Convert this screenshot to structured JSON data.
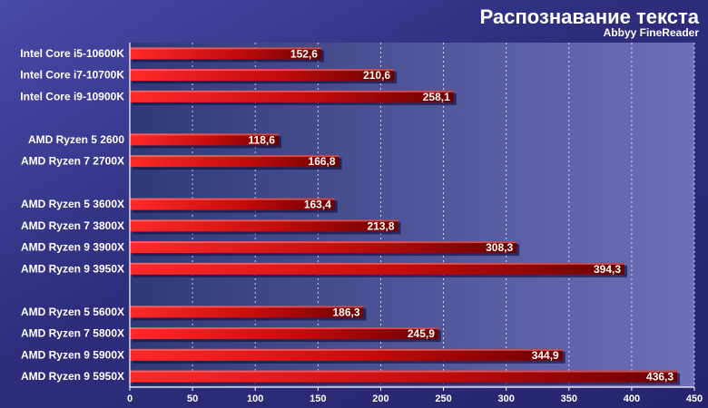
{
  "chart_data": {
    "type": "bar",
    "orientation": "horizontal",
    "title": "Распознавание текста",
    "subtitle": "Abbyy FineReader",
    "categories": [
      "Intel Core i5-10600K",
      "Intel Core i7-10700K",
      "Intel Core i9-10900K",
      "AMD Ryzen 5 2600",
      "AMD Ryzen 7 2700X",
      "AMD Ryzen 5 3600X",
      "AMD Ryzen 7 3800X",
      "AMD Ryzen 9 3900X",
      "AMD Ryzen 9 3950X",
      "AMD Ryzen 5 5600X",
      "AMD Ryzen 7 5800X",
      "AMD Ryzen 9 5900X",
      "AMD Ryzen 9 5950X"
    ],
    "groups": [
      3,
      2,
      4,
      4
    ],
    "values": [
      152.6,
      210.6,
      258.1,
      118.6,
      166.8,
      163.4,
      213.8,
      308.3,
      394.3,
      186.3,
      245.9,
      344.9,
      436.3
    ],
    "value_labels": [
      "152,6",
      "210,6",
      "258,1",
      "118,6",
      "166,8",
      "163,4",
      "213,8",
      "308,3",
      "394,3",
      "186,3",
      "245,9",
      "344,9",
      "436,3"
    ],
    "xlim": [
      0,
      450
    ],
    "xticks": [
      0,
      50,
      100,
      150,
      200,
      250,
      300,
      350,
      400,
      450
    ],
    "grid": true,
    "xlabel": "",
    "ylabel": "",
    "colors": {
      "background": "#2b2b78",
      "plot_left": "#2e3a78",
      "plot_right": "#6f6fb8",
      "bar_light": "#ff2a2a",
      "bar_dark": "#6a0000",
      "text": "#ffffff"
    }
  }
}
